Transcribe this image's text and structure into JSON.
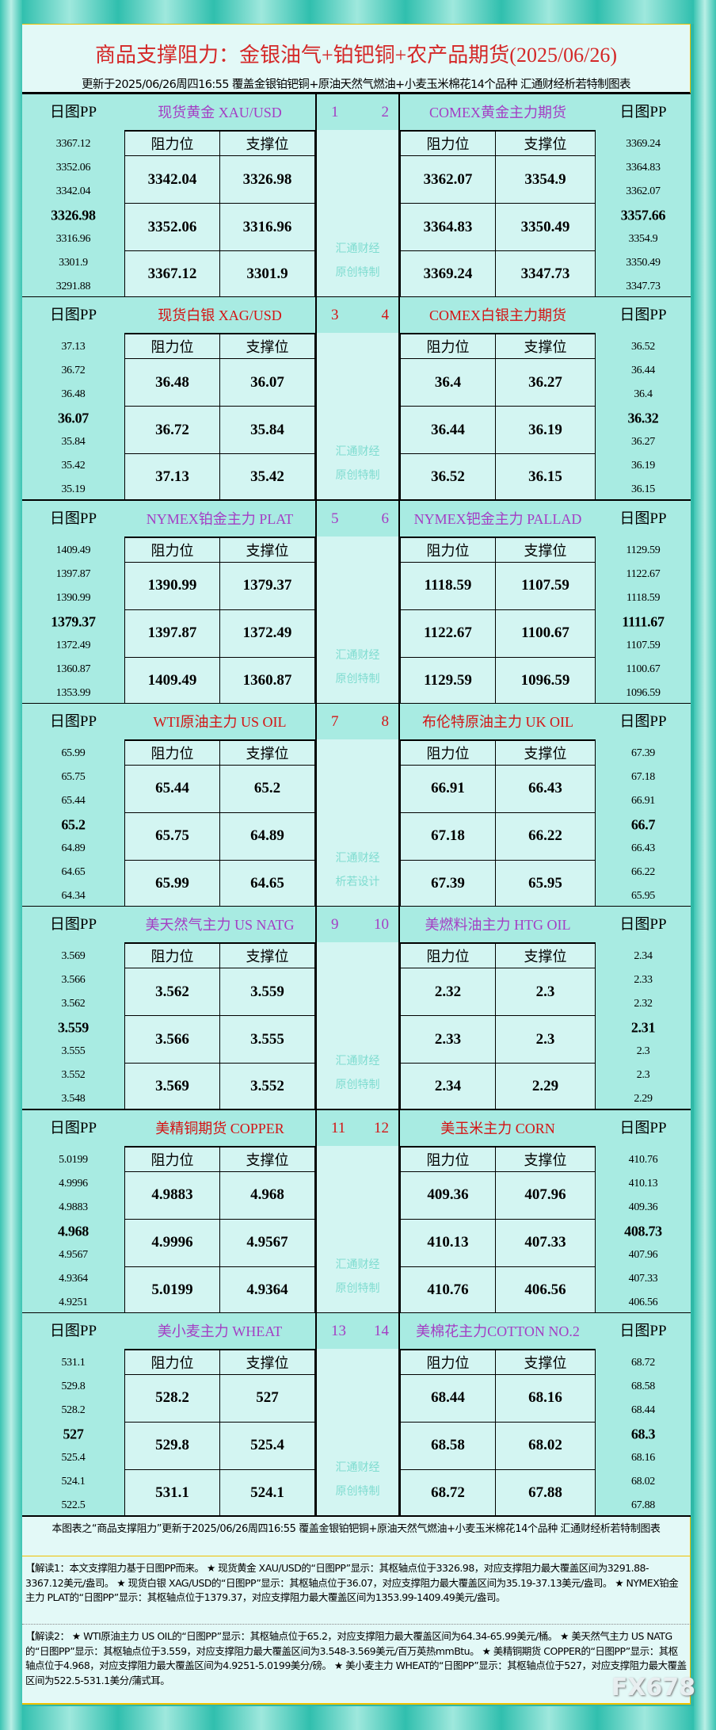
{
  "header": {
    "title": "商品支撑阻力：金银油气+铂钯铜+农产品期货(2025/06/26)",
    "subtitle": "更新于2025/06/26周四16:55 覆盖金银铂钯铜+原油天然气燃油+小麦玉米棉花14个品种 汇通财经析若特制图表"
  },
  "labels": {
    "pp": "日图PP",
    "resistance": "阻力位",
    "support": "支撑位"
  },
  "colors": {
    "purple": "#a43ec4",
    "red": "#d41414",
    "watermark": "#7fdcd0",
    "title": "#d42828"
  },
  "sections": [
    {
      "left": {
        "name": "现货黄金 XAU/USD",
        "num": "1",
        "pp": [
          "3367.12",
          "3352.06",
          "3342.04",
          "3326.98",
          "3316.96",
          "3301.9",
          "3291.88"
        ],
        "rows": [
          [
            "3342.04",
            "3326.98"
          ],
          [
            "3352.06",
            "3316.96"
          ],
          [
            "3367.12",
            "3301.9"
          ]
        ]
      },
      "right": {
        "name": "COMEX黄金主力期货",
        "num": "2",
        "pp": [
          "3369.24",
          "3364.83",
          "3362.07",
          "3357.66",
          "3354.9",
          "3350.49",
          "3347.73"
        ],
        "rows": [
          [
            "3362.07",
            "3354.9"
          ],
          [
            "3364.83",
            "3350.49"
          ],
          [
            "3369.24",
            "3347.73"
          ]
        ]
      },
      "color": "purple",
      "wm": [
        "汇通财经",
        "原创特制"
      ]
    },
    {
      "left": {
        "name": "现货白银 XAG/USD",
        "num": "3",
        "pp": [
          "37.13",
          "36.72",
          "36.48",
          "36.07",
          "35.84",
          "35.42",
          "35.19"
        ],
        "rows": [
          [
            "36.48",
            "36.07"
          ],
          [
            "36.72",
            "35.84"
          ],
          [
            "37.13",
            "35.42"
          ]
        ]
      },
      "right": {
        "name": "COMEX白银主力期货",
        "num": "4",
        "pp": [
          "36.52",
          "36.44",
          "36.4",
          "36.32",
          "36.27",
          "36.19",
          "36.15"
        ],
        "rows": [
          [
            "36.4",
            "36.27"
          ],
          [
            "36.44",
            "36.19"
          ],
          [
            "36.52",
            "36.15"
          ]
        ]
      },
      "color": "red",
      "wm": [
        "汇通财经",
        "原创特制"
      ]
    },
    {
      "left": {
        "name": "NYMEX铂金主力 PLAT",
        "num": "5",
        "pp": [
          "1409.49",
          "1397.87",
          "1390.99",
          "1379.37",
          "1372.49",
          "1360.87",
          "1353.99"
        ],
        "rows": [
          [
            "1390.99",
            "1379.37"
          ],
          [
            "1397.87",
            "1372.49"
          ],
          [
            "1409.49",
            "1360.87"
          ]
        ]
      },
      "right": {
        "name": "NYMEX钯金主力 PALLAD",
        "num": "6",
        "pp": [
          "1129.59",
          "1122.67",
          "1118.59",
          "1111.67",
          "1107.59",
          "1100.67",
          "1096.59"
        ],
        "rows": [
          [
            "1118.59",
            "1107.59"
          ],
          [
            "1122.67",
            "1100.67"
          ],
          [
            "1129.59",
            "1096.59"
          ]
        ]
      },
      "color": "purple",
      "wm": [
        "汇通财经",
        "原创特制"
      ]
    },
    {
      "left": {
        "name": "WTI原油主力 US OIL",
        "num": "7",
        "pp": [
          "65.99",
          "65.75",
          "65.44",
          "65.2",
          "64.89",
          "64.65",
          "64.34"
        ],
        "rows": [
          [
            "65.44",
            "65.2"
          ],
          [
            "65.75",
            "64.89"
          ],
          [
            "65.99",
            "64.65"
          ]
        ]
      },
      "right": {
        "name": "布伦特原油主力 UK OIL",
        "num": "8",
        "pp": [
          "67.39",
          "67.18",
          "66.91",
          "66.7",
          "66.43",
          "66.22",
          "65.95"
        ],
        "rows": [
          [
            "66.91",
            "66.43"
          ],
          [
            "67.18",
            "66.22"
          ],
          [
            "67.39",
            "65.95"
          ]
        ]
      },
      "color": "red",
      "wm": [
        "汇通财经",
        "析若设计"
      ]
    },
    {
      "left": {
        "name": "美天然气主力 US NATG",
        "num": "9",
        "pp": [
          "3.569",
          "3.566",
          "3.562",
          "3.559",
          "3.555",
          "3.552",
          "3.548"
        ],
        "rows": [
          [
            "3.562",
            "3.559"
          ],
          [
            "3.566",
            "3.555"
          ],
          [
            "3.569",
            "3.552"
          ]
        ]
      },
      "right": {
        "name": "美燃料油主力 HTG OIL",
        "num": "10",
        "pp": [
          "2.34",
          "2.33",
          "2.32",
          "2.31",
          "2.3",
          "2.3",
          "2.29"
        ],
        "rows": [
          [
            "2.32",
            "2.3"
          ],
          [
            "2.33",
            "2.3"
          ],
          [
            "2.34",
            "2.29"
          ]
        ]
      },
      "color": "purple",
      "wm": [
        "汇通财经",
        "原创特制"
      ]
    },
    {
      "left": {
        "name": "美精铜期货 COPPER",
        "num": "11",
        "pp": [
          "5.0199",
          "4.9996",
          "4.9883",
          "4.968",
          "4.9567",
          "4.9364",
          "4.9251"
        ],
        "rows": [
          [
            "4.9883",
            "4.968"
          ],
          [
            "4.9996",
            "4.9567"
          ],
          [
            "5.0199",
            "4.9364"
          ]
        ]
      },
      "right": {
        "name": "美玉米主力 CORN",
        "num": "12",
        "pp": [
          "410.76",
          "410.13",
          "409.36",
          "408.73",
          "407.96",
          "407.33",
          "406.56"
        ],
        "rows": [
          [
            "409.36",
            "407.96"
          ],
          [
            "410.13",
            "407.33"
          ],
          [
            "410.76",
            "406.56"
          ]
        ]
      },
      "color": "red",
      "wm": [
        "汇通财经",
        "原创特制"
      ]
    },
    {
      "left": {
        "name": "美小麦主力 WHEAT",
        "num": "13",
        "pp": [
          "531.1",
          "529.8",
          "528.2",
          "527",
          "525.4",
          "524.1",
          "522.5"
        ],
        "rows": [
          [
            "528.2",
            "527"
          ],
          [
            "529.8",
            "525.4"
          ],
          [
            "531.1",
            "524.1"
          ]
        ]
      },
      "right": {
        "name": "美棉花主力COTTON NO.2",
        "num": "14",
        "pp": [
          "68.72",
          "68.58",
          "68.44",
          "68.3",
          "68.16",
          "68.02",
          "67.88"
        ],
        "rows": [
          [
            "68.44",
            "68.16"
          ],
          [
            "68.58",
            "68.02"
          ],
          [
            "68.72",
            "67.88"
          ]
        ]
      },
      "color": "purple",
      "wm": [
        "汇通财经",
        "原创特制"
      ]
    }
  ],
  "footer": {
    "note": "本图表之“商品支撑阻力”更新于2025/06/26周四16:55 覆盖金银铂钯铜+原油天然气燃油+小麦玉米棉花14个品种 汇通财经析若特制图表",
    "para1": "【解读1：本文支撑阻力基于日图PP而来。 ★ 现货黄金 XAU/USD的“日图PP”显示：其枢轴点位于3326.98，对应支撑阻力最大覆盖区间为3291.88-3367.12美元/盎司。 ★ 现货白银 XAG/USD的“日图PP”显示：其枢轴点位于36.07，对应支撑阻力最大覆盖区间为35.19-37.13美元/盎司。 ★ NYMEX铂金主力 PLAT的“日图PP”显示：其枢轴点位于1379.37，对应支撑阻力最大覆盖区间为1353.99-1409.49美元/盎司。",
    "para2": "【解读2： ★ WTI原油主力 US OIL的“日图PP”显示：其枢轴点位于65.2，对应支撑阻力最大覆盖区间为64.34-65.99美元/桶。 ★ 美天然气主力 US NATG的“日图PP”显示：其枢轴点位于3.559，对应支撑阻力最大覆盖区间为3.548-3.569美元/百万英热mmBtu。 ★ 美精铜期货 COPPER的“日图PP”显示：其枢轴点位于4.968，对应支撑阻力最大覆盖区间为4.9251-5.0199美分/磅。 ★ 美小麦主力 WHEAT的“日图PP”显示：其枢轴点位于527，对应支撑阻力最大覆盖区间为522.5-531.1美分/蒲式耳。",
    "watermark": "FX678"
  }
}
